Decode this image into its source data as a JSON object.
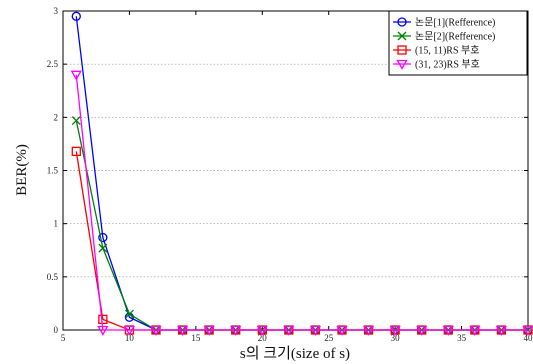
{
  "chart_data": {
    "type": "line",
    "xlabel": "s의 크기(size of s)",
    "ylabel": "BER(%)",
    "xlim": [
      5,
      40
    ],
    "ylim": [
      0,
      3
    ],
    "xticks": [
      5,
      10,
      15,
      20,
      25,
      30,
      35,
      40
    ],
    "yticks": [
      0,
      0.5,
      1,
      1.5,
      2,
      2.5,
      3
    ],
    "grid": "horizontal-dotted",
    "legend_position": "top-right",
    "series": [
      {
        "name": "논문[1](Refference)",
        "color": "#0000ff",
        "marker": "circle",
        "x": [
          6,
          8,
          10,
          12,
          14,
          16,
          18,
          20,
          22,
          24,
          26,
          28,
          30,
          32,
          34,
          36,
          38,
          40
        ],
        "y": [
          2.95,
          0.87,
          0.12,
          0,
          0,
          0,
          0,
          0,
          0,
          0,
          0,
          0,
          0,
          0,
          0,
          0,
          0,
          0
        ]
      },
      {
        "name": "논문[2](Refference)",
        "color": "#008000",
        "marker": "x",
        "x": [
          6,
          8,
          10,
          12,
          14,
          16,
          18,
          20,
          22,
          24,
          26,
          28,
          30,
          32,
          34,
          36,
          38,
          40
        ],
        "y": [
          1.97,
          0.77,
          0.15,
          0,
          0,
          0,
          0,
          0,
          0,
          0,
          0,
          0,
          0,
          0,
          0,
          0,
          0,
          0
        ]
      },
      {
        "name": "(15, 11)RS 부호",
        "color": "#ff0000",
        "marker": "square",
        "x": [
          6,
          8,
          10,
          12,
          14,
          16,
          18,
          20,
          22,
          24,
          26,
          28,
          30,
          32,
          34,
          36,
          38,
          40
        ],
        "y": [
          1.68,
          0.1,
          0,
          0,
          0,
          0,
          0,
          0,
          0,
          0,
          0,
          0,
          0,
          0,
          0,
          0,
          0,
          0
        ]
      },
      {
        "name": "(31, 23)RS 부호",
        "color": "#ff00ff",
        "marker": "triangle-down",
        "x": [
          6,
          8,
          10,
          12,
          14,
          16,
          18,
          20,
          22,
          24,
          26,
          28,
          30,
          32,
          34,
          36,
          38,
          40
        ],
        "y": [
          2.4,
          0,
          0,
          0,
          0,
          0,
          0,
          0,
          0,
          0,
          0,
          0,
          0,
          0,
          0,
          0,
          0,
          0
        ]
      }
    ]
  }
}
